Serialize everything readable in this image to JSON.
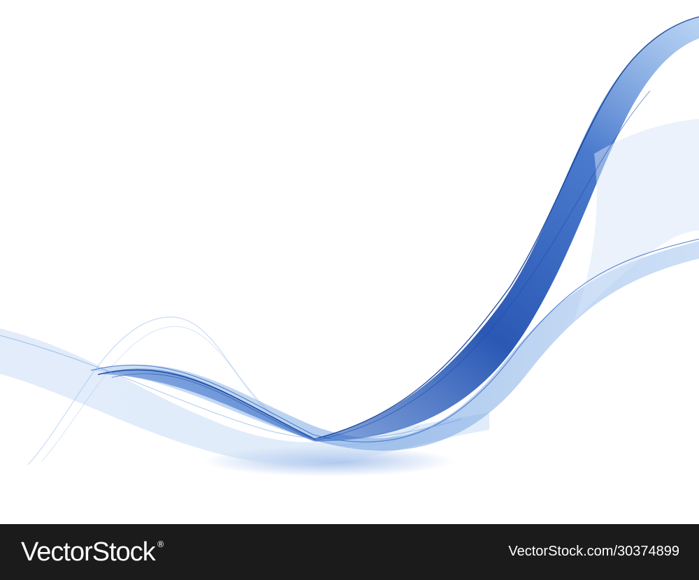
{
  "artwork": {
    "subject": "abstract-blue-wave",
    "colors": {
      "background": "#ffffff",
      "deep_blue": "#1f4fb0",
      "mid_blue": "#2f6fd0",
      "light_blue": "#8fb8ec",
      "footer_bg": "#1b1b1b"
    }
  },
  "footer": {
    "brand": "VectorStock",
    "registered_mark": "®",
    "image_id": "VectorStock.com/30374899"
  }
}
